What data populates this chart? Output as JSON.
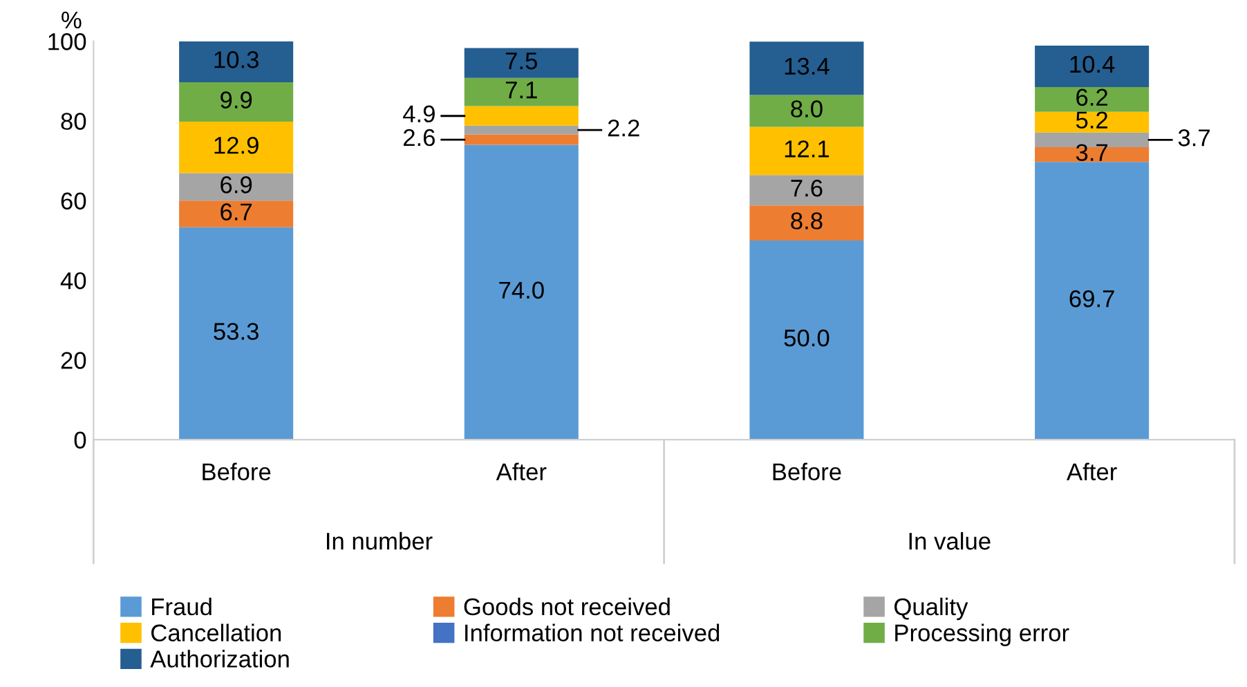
{
  "chart_data": {
    "type": "bar",
    "stacked": true,
    "ylabel": "%",
    "categories": [
      "Before",
      "After",
      "Before",
      "After"
    ],
    "annotations": [
      "In number",
      "In value"
    ],
    "ylim": [
      0,
      100
    ],
    "yticks": [
      0,
      20,
      40,
      60,
      80,
      100
    ],
    "grid": false,
    "legend": "bottom",
    "series": [
      {
        "name": "Fraud",
        "color": "#5b9bd5",
        "values": [
          53.3,
          74.0,
          50.0,
          69.7
        ],
        "value_labels": [
          "53.3",
          "74.0",
          "50.0",
          "69.7"
        ]
      },
      {
        "name": "Goods not received",
        "color": "#ed7d31",
        "values": [
          6.7,
          2.6,
          8.8,
          3.7
        ],
        "value_labels": [
          "6.7",
          "2.6",
          "8.8",
          "3.7"
        ]
      },
      {
        "name": "Quality",
        "color": "#a5a5a5",
        "values": [
          6.9,
          2.2,
          7.6,
          3.7
        ],
        "value_labels": [
          "6.9",
          "2.2",
          "7.6",
          "3.7"
        ]
      },
      {
        "name": "Cancellation",
        "color": "#ffc000",
        "values": [
          12.9,
          4.9,
          12.1,
          5.2
        ],
        "value_labels": [
          "12.9",
          "4.9",
          "12.1",
          "5.2"
        ]
      },
      {
        "name": "Information not received",
        "color": "#4472c4",
        "values": [
          null,
          null,
          null,
          null
        ]
      },
      {
        "name": "Processing error",
        "color": "#70ad47",
        "values": [
          9.9,
          7.1,
          8.0,
          6.2
        ],
        "value_labels": [
          "9.9",
          "7.1",
          "8.0",
          "6.2"
        ]
      },
      {
        "name": "Authorization",
        "color": "#255e91",
        "values": [
          10.3,
          7.5,
          13.4,
          10.4
        ],
        "value_labels": [
          "10.3",
          "7.5",
          "13.4",
          "10.4"
        ]
      }
    ]
  }
}
